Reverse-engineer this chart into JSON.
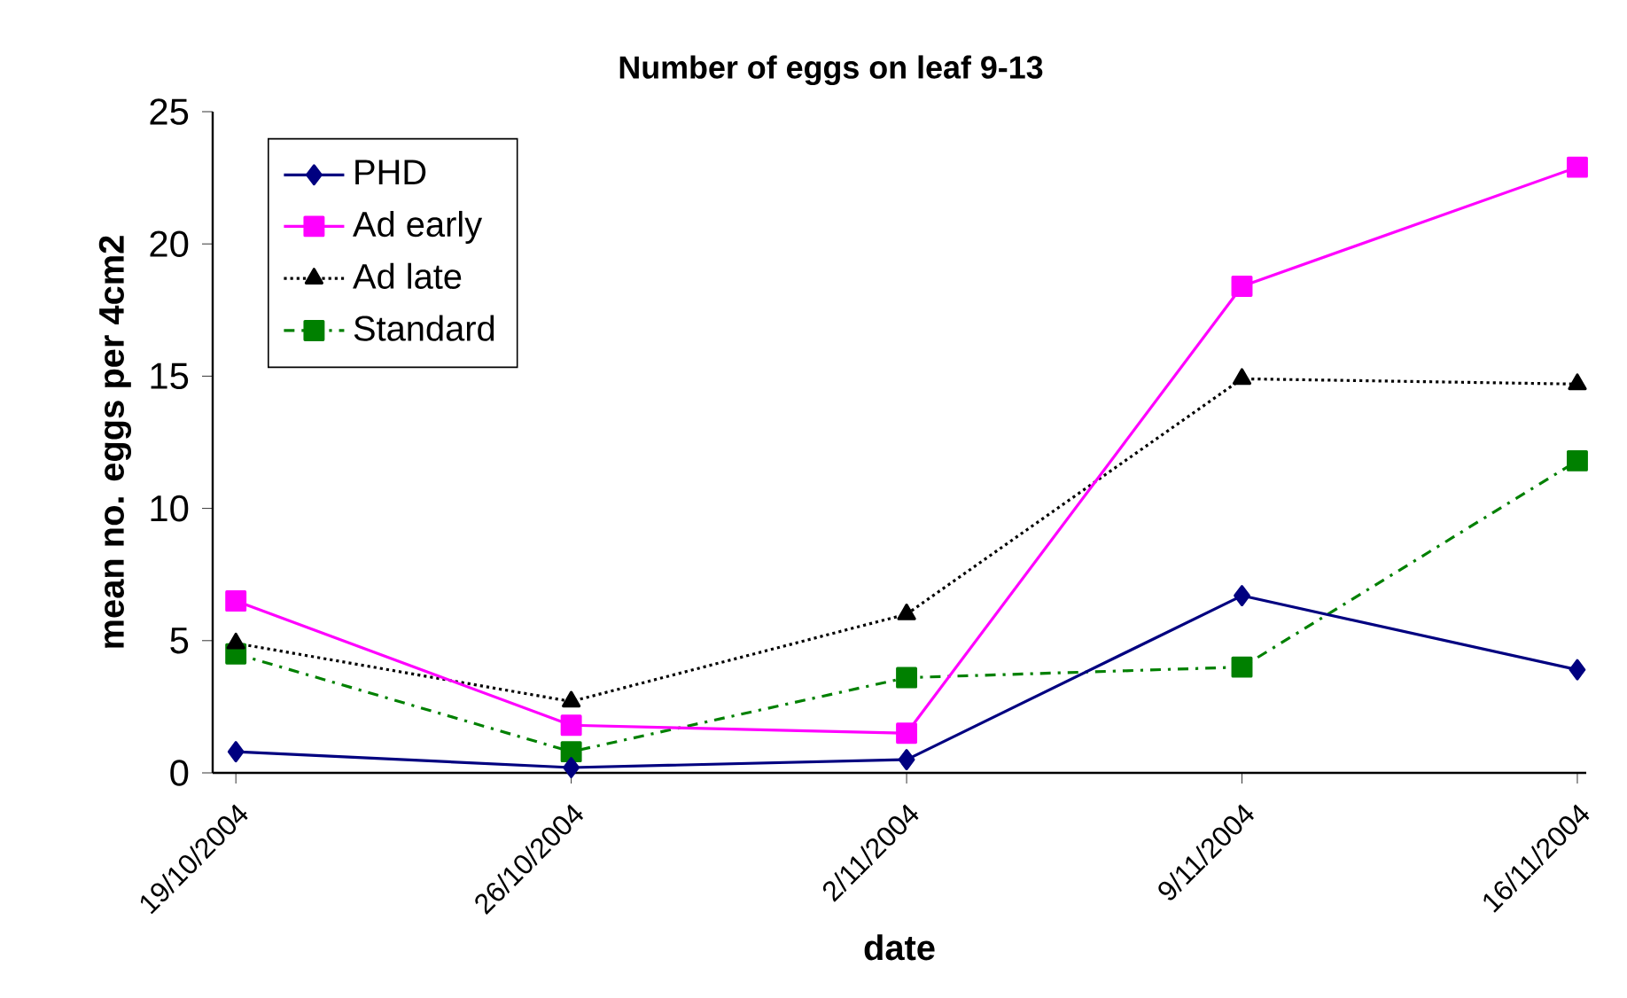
{
  "chart_data": {
    "type": "line",
    "title": "Number of eggs on leaf 9-13",
    "xlabel": "date",
    "ylabel": "mean no. eggs per 4cm2",
    "categories": [
      "19/10/2004",
      "26/10/2004",
      "2/11/2004",
      "9/11/2004",
      "16/11/2004"
    ],
    "series": [
      {
        "name": "PHD",
        "color": "#000080",
        "marker": "diamond",
        "line_style": "solid",
        "values": [
          0.8,
          0.2,
          0.5,
          6.7,
          3.9
        ]
      },
      {
        "name": "Ad early",
        "color": "#ff00ff",
        "marker": "square",
        "line_style": "solid",
        "values": [
          6.5,
          1.8,
          1.5,
          18.4,
          22.9
        ]
      },
      {
        "name": "Ad late",
        "color": "#000000",
        "marker": "triangle",
        "line_style": "dotted",
        "values": [
          4.9,
          2.7,
          6.0,
          14.9,
          14.7
        ]
      },
      {
        "name": "Standard",
        "color": "#008000",
        "marker": "square",
        "line_style": "dashdot",
        "values": [
          4.5,
          0.8,
          3.6,
          4.0,
          11.8
        ]
      }
    ],
    "ylim": [
      0,
      25
    ],
    "yticks": [
      0,
      5,
      10,
      15,
      20,
      25
    ],
    "grid": false,
    "legend": "top left"
  }
}
